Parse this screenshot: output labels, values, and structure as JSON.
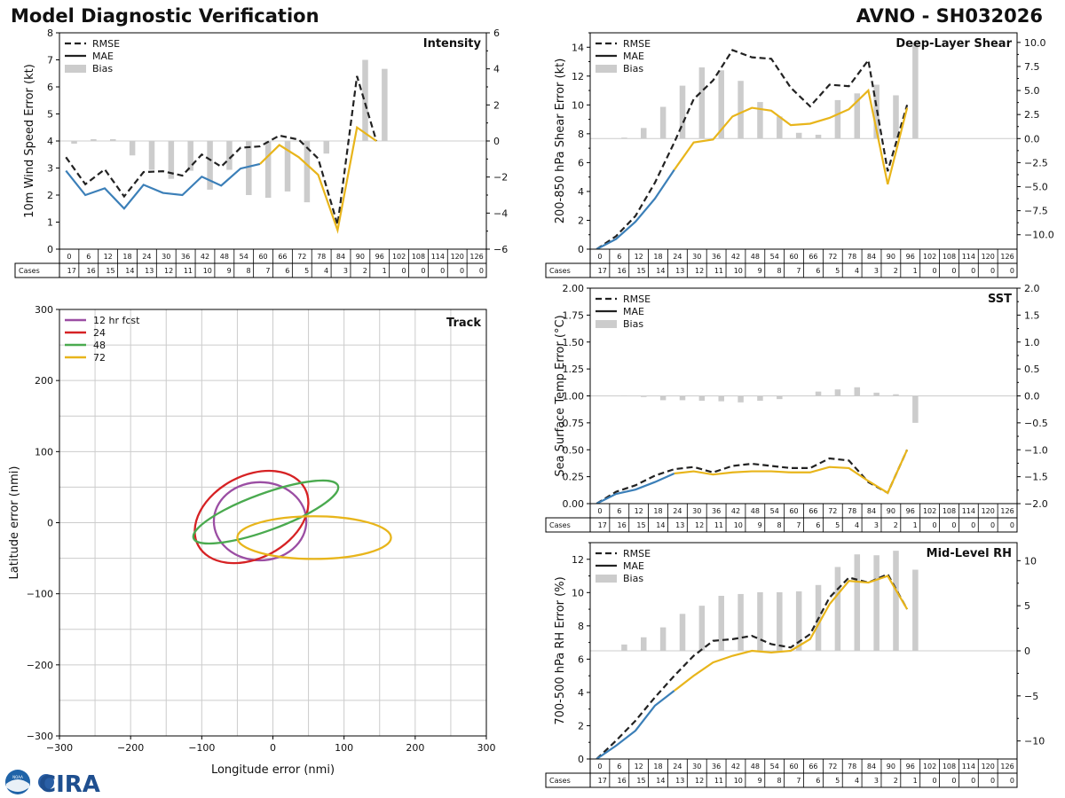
{
  "page": {
    "title_left": "Model Diagnostic Verification",
    "title_right": "AVNO - SH032026",
    "logo_text": "CIRA",
    "logo_badge": "NOAA"
  },
  "colors": {
    "rmse": "#222222",
    "mae_early": "#3b7fb8",
    "mae_late": "#e8b51b",
    "bias": "#cccccc",
    "grid": "#cccccc"
  },
  "table": {
    "cases_label": "Cases",
    "hours": [
      "0",
      "6",
      "12",
      "18",
      "24",
      "30",
      "36",
      "42",
      "48",
      "54",
      "60",
      "66",
      "72",
      "78",
      "84",
      "90",
      "96",
      "102",
      "108",
      "114",
      "120",
      "126"
    ],
    "cases": [
      "17",
      "16",
      "15",
      "14",
      "13",
      "12",
      "11",
      "10",
      "9",
      "8",
      "7",
      "6",
      "5",
      "4",
      "3",
      "2",
      "1",
      "0",
      "0",
      "0",
      "0",
      "0"
    ]
  },
  "chart_data": [
    {
      "id": "intensity",
      "type": "line",
      "title": "Intensity",
      "ylabel": "10m Wind Speed Error (kt)",
      "ylim": [
        0,
        8
      ],
      "y2lim": [
        -6,
        6
      ],
      "yticks": [
        "0",
        "1",
        "2",
        "3",
        "4",
        "5",
        "6",
        "7",
        "8"
      ],
      "y2ticks": [
        "−6",
        "−4",
        "−2",
        "0",
        "2",
        "4",
        "6"
      ],
      "legend": [
        "RMSE",
        "MAE",
        "Bias"
      ],
      "legend_position": "top-left",
      "x": [
        0,
        6,
        12,
        18,
        24,
        30,
        36,
        42,
        48,
        54,
        60,
        66,
        72,
        78,
        84,
        90,
        96
      ],
      "rmse": [
        3.4,
        2.4,
        2.95,
        1.95,
        2.85,
        2.88,
        2.72,
        3.5,
        3.05,
        3.75,
        3.8,
        4.2,
        4.05,
        3.35,
        0.9,
        6.4,
        4.0
      ],
      "mae": [
        2.9,
        2.0,
        2.25,
        1.5,
        2.38,
        2.08,
        2.0,
        2.68,
        2.35,
        2.98,
        3.15,
        3.85,
        3.4,
        2.75,
        0.7,
        4.5,
        4.0
      ],
      "mae_split_index": 10,
      "bias": [
        -0.15,
        0.1,
        0.1,
        -0.8,
        -1.6,
        -2.1,
        -1.65,
        -2.7,
        -1.6,
        -3.0,
        -3.15,
        -2.8,
        -3.4,
        -0.7,
        0.0,
        4.5,
        4.0
      ]
    },
    {
      "id": "shear",
      "type": "line",
      "title": "Deep-Layer Shear",
      "ylabel": "200-850 hPa Shear Error (kt)",
      "ylim": [
        0,
        15
      ],
      "y2lim": [
        -11.5,
        11
      ],
      "yticks": [
        "0",
        "2",
        "4",
        "6",
        "8",
        "10",
        "12",
        "14"
      ],
      "y2ticks": [
        "−10.0",
        "−7.5",
        "−5.0",
        "−2.5",
        "0.0",
        "2.5",
        "5.0",
        "7.5",
        "10.0"
      ],
      "legend": [
        "RMSE",
        "MAE",
        "Bias"
      ],
      "legend_position": "top-left",
      "x": [
        0,
        6,
        12,
        18,
        24,
        30,
        36,
        42,
        48,
        54,
        60,
        66,
        72,
        78,
        84,
        90,
        96
      ],
      "rmse": [
        0.0,
        0.9,
        2.3,
        4.6,
        7.4,
        10.4,
        11.7,
        13.8,
        13.3,
        13.2,
        11.2,
        9.9,
        11.4,
        11.3,
        13.1,
        5.4,
        10.0
      ],
      "mae": [
        0.0,
        0.7,
        1.9,
        3.5,
        5.5,
        7.4,
        7.6,
        9.2,
        9.8,
        9.6,
        8.6,
        8.7,
        9.1,
        9.7,
        11.0,
        4.5,
        9.8
      ],
      "mae_split_index": 4,
      "bias": [
        0.0,
        0.1,
        1.1,
        3.3,
        5.5,
        7.4,
        7.1,
        6.0,
        3.8,
        2.3,
        0.6,
        0.4,
        4.0,
        4.7,
        5.6,
        4.5,
        10.0
      ]
    },
    {
      "id": "sst",
      "type": "line",
      "title": "SST",
      "ylabel": "Sea Surface Temp Error (°C)",
      "ylim": [
        0,
        2
      ],
      "y2lim": [
        -2,
        2
      ],
      "yticks": [
        "0.00",
        "0.25",
        "0.50",
        "0.75",
        "1.00",
        "1.25",
        "1.50",
        "1.75",
        "2.00"
      ],
      "y2ticks": [
        "−2.0",
        "−1.5",
        "−1.0",
        "−0.5",
        "0.0",
        "0.5",
        "1.0",
        "1.5",
        "2.0"
      ],
      "legend": [
        "RMSE",
        "MAE",
        "Bias"
      ],
      "legend_position": "top-left",
      "x": [
        0,
        6,
        12,
        18,
        24,
        30,
        36,
        42,
        48,
        54,
        60,
        66,
        72,
        78,
        84,
        90,
        96
      ],
      "rmse": [
        0.0,
        0.11,
        0.17,
        0.26,
        0.32,
        0.34,
        0.29,
        0.35,
        0.37,
        0.35,
        0.33,
        0.33,
        0.42,
        0.4,
        0.2,
        0.1,
        0.5
      ],
      "mae": [
        0.0,
        0.09,
        0.13,
        0.2,
        0.28,
        0.3,
        0.27,
        0.29,
        0.3,
        0.3,
        0.29,
        0.29,
        0.34,
        0.33,
        0.21,
        0.1,
        0.5
      ],
      "mae_split_index": 4,
      "bias": [
        0.0,
        0.01,
        -0.02,
        -0.08,
        -0.08,
        -0.09,
        -0.1,
        -0.12,
        -0.09,
        -0.06,
        0.0,
        0.08,
        0.12,
        0.16,
        0.06,
        0.03,
        -0.5
      ]
    },
    {
      "id": "rh",
      "type": "line",
      "title": "Mid-Level RH",
      "ylabel": "700-500 hPa RH Error (%)",
      "ylim": [
        0,
        13
      ],
      "y2lim": [
        -12,
        12
      ],
      "yticks": [
        "0",
        "2",
        "4",
        "6",
        "8",
        "10",
        "12"
      ],
      "y2ticks": [
        "−10",
        "−5",
        "0",
        "5",
        "10"
      ],
      "legend": [
        "RMSE",
        "MAE",
        "Bias"
      ],
      "legend_position": "top-left",
      "x": [
        0,
        6,
        12,
        18,
        24,
        30,
        36,
        42,
        48,
        54,
        60,
        66,
        72,
        78,
        84,
        90,
        96
      ],
      "rmse": [
        0.0,
        1.1,
        2.3,
        3.7,
        5.0,
        6.2,
        7.1,
        7.2,
        7.4,
        6.9,
        6.7,
        7.5,
        9.7,
        10.9,
        10.6,
        11.1,
        9.0
      ],
      "mae": [
        0.0,
        0.8,
        1.7,
        3.2,
        4.1,
        5.0,
        5.8,
        6.2,
        6.5,
        6.4,
        6.5,
        7.2,
        9.3,
        10.7,
        10.6,
        11.0,
        9.0
      ],
      "mae_split_index": 4,
      "bias": [
        0.0,
        0.7,
        1.5,
        2.6,
        4.1,
        5.0,
        6.1,
        6.3,
        6.5,
        6.5,
        6.6,
        7.3,
        9.3,
        10.7,
        10.6,
        11.1,
        9.0
      ]
    },
    {
      "id": "track",
      "type": "scatter",
      "title": "Track",
      "xlabel": "Longitude error (nmi)",
      "ylabel": "Latitude error (nmi)",
      "xlim": [
        -300,
        300
      ],
      "ylim": [
        -300,
        300
      ],
      "xticks": [
        "−300",
        "−200",
        "−100",
        "0",
        "100",
        "200",
        "300"
      ],
      "yticks": [
        "−300",
        "−200",
        "−100",
        "0",
        "100",
        "200",
        "300"
      ],
      "legend_position": "top-left",
      "ellipses": [
        {
          "label": "12 hr fcst",
          "color": "#9b4ea3",
          "cx": -18,
          "cy": 2,
          "rx": 65,
          "ry": 55,
          "angle": 0
        },
        {
          "label": "24",
          "color": "#d62224",
          "cx": -30,
          "cy": 8,
          "rx": 85,
          "ry": 58,
          "angle": 28
        },
        {
          "label": "48",
          "color": "#4aaa4f",
          "cx": -10,
          "cy": 15,
          "rx": 108,
          "ry": 26,
          "angle": 20
        },
        {
          "label": "72",
          "color": "#e8b51b",
          "cx": 58,
          "cy": -21,
          "rx": 108,
          "ry": 30,
          "angle": 0
        }
      ]
    }
  ]
}
